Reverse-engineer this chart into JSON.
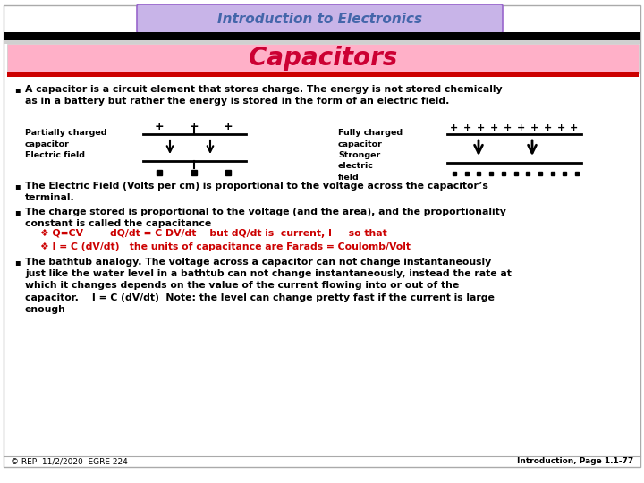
{
  "title": "Introduction to Electronics",
  "subtitle": "Capacitors",
  "title_bg": "#c8b4e8",
  "subtitle_bg": "#ffb0c8",
  "main_bg": "#ffffff",
  "title_color": "#4466aa",
  "subtitle_color": "#cc0033",
  "red_color": "#cc0000",
  "footer_left": "© REP  11/2/2020  EGRE 224",
  "footer_right": "Introduction, Page 1.1-77",
  "bullet1": "A capacitor is a circuit element that stores charge. The energy is not stored chemically\nas in a battery but rather the energy is stored in the form of an electric field.",
  "bullet2": "The Electric Field (Volts per cm) is proportional to the voltage across the capacitor’s\nterminal.",
  "bullet3": "The charge stored is proportional to the voltage (and the area), and the proportionality\nconstant is called the capacitance",
  "formula1": "❖ Q=CV        dQ/dt = C DV/dt    but dQ/dt is  current, I     so that",
  "formula2": "❖ I = C (dV/dt)   the units of capacitance are Farads = Coulomb/Volt",
  "bullet4": "The bathtub analogy. The voltage across a capacitor can not change instantaneously\njust like the water level in a bathtub can not change instantaneously, instead the rate at\nwhich it changes depends on the value of the current flowing into or out of the\ncapacitor.    I = C (dV/dt)  Note: the level can change pretty fast if the current is large\nenough",
  "partial_label": "Partially charged\ncapacitor\nElectric field",
  "full_label": "Fully charged\ncapacitor\nStronger\nelectric\nfield"
}
